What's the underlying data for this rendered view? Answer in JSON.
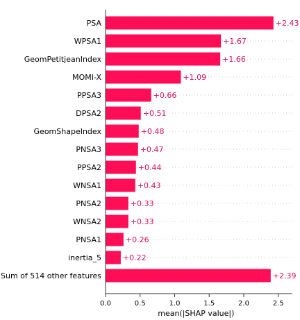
{
  "chart_data": {
    "type": "bar",
    "orientation": "horizontal",
    "categories": [
      "PSA",
      "WPSA1",
      "GeomPetitjeanIndex",
      "MOMI-X",
      "PPSA3",
      "DPSA2",
      "GeomShapeIndex",
      "PNSA3",
      "PPSA2",
      "WNSA1",
      "PNSA2",
      "WNSA2",
      "PNSA1",
      "inertia_5",
      "Sum of 514 other features"
    ],
    "values": [
      2.43,
      1.67,
      1.66,
      1.09,
      0.66,
      0.51,
      0.48,
      0.47,
      0.44,
      0.43,
      0.33,
      0.33,
      0.26,
      0.22,
      2.39
    ],
    "value_labels": [
      "+2.43",
      "+1.67",
      "+1.66",
      "+1.09",
      "+0.66",
      "+0.51",
      "+0.48",
      "+0.47",
      "+0.44",
      "+0.43",
      "+0.33",
      "+0.33",
      "+0.26",
      "+0.22",
      "+2.39"
    ],
    "xlabel": "mean(|SHAP value|)",
    "xlim": [
      0,
      2.7
    ],
    "xticks": [
      0.0,
      0.5,
      1.0,
      1.5,
      2.0,
      2.5
    ],
    "xtick_labels": [
      "0.0",
      "0.5",
      "1.0",
      "1.5",
      "2.0",
      "2.5"
    ],
    "grid": false,
    "bar_color": "#ff0d57",
    "label_color": "#d6105a"
  }
}
